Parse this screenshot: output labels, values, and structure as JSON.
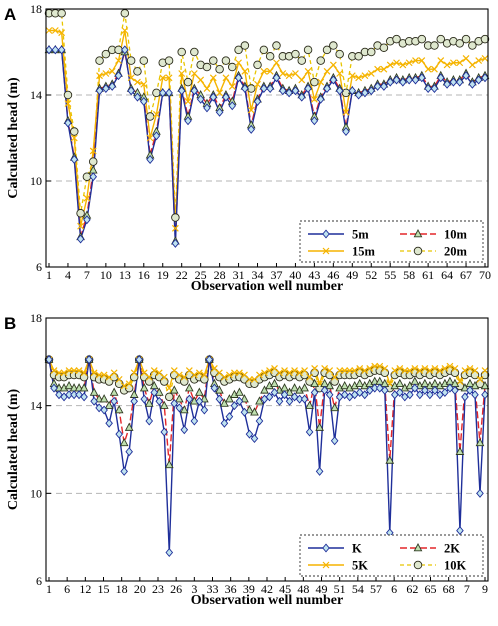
{
  "chart_data": [
    {
      "panel": "A",
      "type": "line",
      "xlabel": "Observation well number",
      "ylabel": "Calculated  head (m)",
      "xtick_labels": [
        "1",
        "4",
        "7",
        "10",
        "13",
        "16",
        "19",
        "22",
        "25",
        "28",
        "31",
        "34",
        "37",
        "40",
        "43",
        "46",
        "49",
        "52",
        "55",
        "58",
        "61",
        "64",
        "67",
        "70"
      ],
      "ylim": [
        6,
        18
      ],
      "yticks": [
        6,
        10,
        14,
        18
      ],
      "grid": "dashed gray horizontal at 10 and 14",
      "legend_placement": "bottom-right",
      "series": [
        {
          "name": "5m",
          "color": "#1f2f9a",
          "marker": "diamond",
          "values": [
            16.1,
            16.1,
            16.1,
            12.7,
            11,
            7.3,
            8.2,
            10.2,
            14.2,
            14.3,
            14.4,
            14.9,
            16.1,
            14.2,
            13.9,
            13.7,
            11,
            12.1,
            14.1,
            14.1,
            7.1,
            14.2,
            12.8,
            14.2,
            13.8,
            13.4,
            13.9,
            13.2,
            13.9,
            13.5,
            14.8,
            14.3,
            12.4,
            13.7,
            14.3,
            14.3,
            14.8,
            14.2,
            14.1,
            14.2,
            13.9,
            14.3,
            12.8,
            13.8,
            14.3,
            14.7,
            14.2,
            12.3,
            14.2,
            14,
            14.1,
            14.2,
            14.4,
            14.4,
            14.6,
            14.7,
            14.6,
            14.7,
            14.7,
            14.8,
            14.3,
            14.3,
            14.8,
            14.5,
            14.6,
            14.6,
            14.9,
            14.5,
            14.7,
            14.8
          ]
        },
        {
          "name": "10m",
          "color": "#e3262a",
          "marker": "triangle",
          "values": [
            16.1,
            16.1,
            16.1,
            12.8,
            11.1,
            7.4,
            8.4,
            10.5,
            14.3,
            14.4,
            14.5,
            15,
            16,
            14.3,
            14.1,
            13.9,
            11.2,
            12.3,
            14.1,
            14.1,
            7.2,
            14.3,
            13,
            14.3,
            14,
            13.6,
            14,
            13.4,
            14,
            13.7,
            14.9,
            14.4,
            12.6,
            13.8,
            14.4,
            14.4,
            14.9,
            14.3,
            14.2,
            14.3,
            14,
            14.4,
            13,
            13.9,
            14.4,
            14.8,
            14.3,
            12.5,
            14.2,
            14.1,
            14.2,
            14.3,
            14.5,
            14.5,
            14.7,
            14.8,
            14.7,
            14.8,
            14.8,
            14.9,
            14.4,
            14.4,
            14.9,
            14.6,
            14.7,
            14.7,
            15,
            14.6,
            14.8,
            14.9
          ]
        },
        {
          "name": "15m",
          "color": "#f5b400",
          "marker": "x",
          "values": [
            17,
            17,
            16.9,
            13.6,
            12,
            7.9,
            9.2,
            11.4,
            14.9,
            15,
            15.1,
            15.6,
            17,
            14.8,
            14.6,
            14.5,
            12,
            13.1,
            14.8,
            14.8,
            7.8,
            15,
            13.7,
            15,
            14.7,
            14.3,
            14.8,
            14.1,
            14.8,
            14.4,
            15.5,
            15.1,
            13.3,
            14.5,
            15.1,
            15.1,
            15.5,
            15,
            14.9,
            15,
            14.7,
            15.1,
            13.8,
            14.6,
            15.1,
            15.4,
            15,
            13.2,
            14.9,
            14.8,
            14.9,
            15,
            15.2,
            15.2,
            15.4,
            15.5,
            15.4,
            15.5,
            15.6,
            15.6,
            15.2,
            15.2,
            15.6,
            15.4,
            15.5,
            15.5,
            15.7,
            15.4,
            15.6,
            15.7
          ]
        },
        {
          "name": "20m",
          "color": "#e8c500",
          "marker": "circle",
          "values": [
            17.8,
            17.8,
            17.8,
            14,
            12.3,
            8.5,
            10.2,
            10.9,
            15.6,
            15.9,
            16.1,
            16.1,
            17.8,
            15.6,
            15.1,
            15.6,
            13,
            14.1,
            15.5,
            15.6,
            8.3,
            16,
            14.6,
            16,
            15.4,
            15.3,
            15.6,
            15.2,
            15.6,
            15.3,
            16.1,
            16.3,
            14.3,
            15.4,
            16.1,
            15.8,
            16.3,
            15.8,
            15.8,
            15.9,
            15.6,
            16.1,
            14.6,
            15.6,
            16.1,
            16.3,
            15.9,
            14.1,
            15.8,
            15.8,
            16,
            16,
            16.3,
            16.2,
            16.5,
            16.6,
            16.4,
            16.5,
            16.5,
            16.6,
            16.3,
            16.3,
            16.6,
            16.4,
            16.5,
            16.4,
            16.6,
            16.3,
            16.5,
            16.6
          ]
        }
      ]
    },
    {
      "panel": "B",
      "type": "line",
      "xlabel": "Observation well number",
      "ylabel": "Calculated  head (m)",
      "xtick_labels": [
        "1",
        "6",
        "12",
        "15",
        "18",
        "20",
        "23",
        "26",
        "3",
        "33",
        "36",
        "39",
        "42",
        "45",
        "48",
        "49",
        "51",
        "54",
        "57",
        "6",
        "62",
        "65",
        "68",
        "7",
        "9"
      ],
      "ylim": [
        6,
        18
      ],
      "yticks": [
        6,
        10,
        14,
        18
      ],
      "grid": "dashed gray horizontal at 10 and 14",
      "legend_placement": "bottom-right",
      "series": [
        {
          "name": "K",
          "color": "#1f2f9a",
          "marker": "diamond",
          "values": [
            16.1,
            14.8,
            14.5,
            14.4,
            14.5,
            14.5,
            14.5,
            14.4,
            16.1,
            14.2,
            13.9,
            13.8,
            13.2,
            14.2,
            12.7,
            11,
            11.9,
            14.2,
            16.1,
            14.3,
            13.3,
            14.6,
            14.2,
            12.8,
            7.3,
            14.1,
            13.9,
            12.9,
            14.3,
            13.3,
            14.2,
            13.8,
            16.1,
            14.8,
            14.3,
            13.2,
            13.5,
            14,
            14.2,
            13.7,
            12.7,
            12.5,
            13.3,
            14.3,
            14.4,
            14.6,
            14.2,
            14.5,
            14.2,
            14.4,
            14.3,
            14.3,
            12.8,
            14.6,
            11,
            14.7,
            14.5,
            12.4,
            14.4,
            14.5,
            14.4,
            14.5,
            14.6,
            14.5,
            14.7,
            14.8,
            14.8,
            14.7,
            8.2,
            14.5,
            14.6,
            14.4,
            14.5,
            14.8,
            14.5,
            14.7,
            14.5,
            14.7,
            14.5,
            14.6,
            14.8,
            14.7,
            8.3,
            14.4,
            14.7,
            14.5,
            10,
            14.5
          ]
        },
        {
          "name": "2K",
          "color": "#e3262a",
          "marker": "triangle",
          "values": [
            16.1,
            15,
            14.8,
            14.8,
            14.9,
            14.8,
            14.8,
            14.8,
            16.1,
            14.6,
            14.3,
            14.3,
            14,
            14.6,
            13.8,
            12.3,
            13,
            14.5,
            16.1,
            14.8,
            14.1,
            14.9,
            14.6,
            14,
            11.3,
            14.7,
            14.3,
            13.8,
            14.8,
            14.2,
            14.6,
            14.3,
            16.1,
            15,
            14.7,
            14.1,
            14.3,
            14.5,
            14.6,
            14.3,
            13.8,
            13.7,
            14.2,
            14.7,
            14.9,
            15,
            14.7,
            14.8,
            14.6,
            14.8,
            14.7,
            14.8,
            14,
            15,
            13,
            15,
            14.9,
            13.9,
            14.8,
            14.9,
            14.8,
            14.9,
            15,
            14.9,
            15,
            15.1,
            15.1,
            15,
            11.5,
            14.9,
            15,
            14.8,
            14.9,
            15.1,
            14.9,
            15,
            14.9,
            15,
            14.9,
            15,
            15.1,
            15,
            11.9,
            14.8,
            15,
            14.9,
            12.3,
            14.9
          ]
        },
        {
          "name": "5K",
          "color": "#f5b400",
          "marker": "x",
          "values": [
            16.1,
            15.6,
            15.5,
            15.5,
            15.6,
            15.6,
            15.6,
            15.5,
            16.1,
            15.5,
            15.4,
            15.4,
            15.3,
            15.5,
            15.2,
            14.9,
            15,
            15.5,
            16.1,
            15.5,
            15.3,
            15.6,
            15.5,
            15.3,
            14.8,
            15.6,
            15.4,
            15.3,
            15.6,
            15.4,
            15.5,
            15.4,
            16.1,
            15.7,
            15.5,
            15.3,
            15.4,
            15.5,
            15.5,
            15.4,
            15.2,
            15.2,
            15.4,
            15.5,
            15.6,
            15.7,
            15.5,
            15.6,
            15.5,
            15.6,
            15.5,
            15.6,
            15.3,
            15.7,
            15,
            15.7,
            15.6,
            15.3,
            15.6,
            15.6,
            15.6,
            15.6,
            15.7,
            15.6,
            15.7,
            15.8,
            15.8,
            15.7,
            15,
            15.6,
            15.7,
            15.6,
            15.6,
            15.7,
            15.6,
            15.7,
            15.6,
            15.7,
            15.6,
            15.7,
            15.8,
            15.7,
            15.1,
            15.6,
            15.7,
            15.6,
            15.2,
            15.6
          ]
        },
        {
          "name": "10K",
          "color": "#e8c500",
          "marker": "circle",
          "values": [
            16.1,
            15.4,
            15.3,
            15.3,
            15.4,
            15.4,
            15.4,
            15.3,
            16.1,
            15.3,
            15.2,
            15.2,
            15.1,
            15.3,
            15,
            14.7,
            14.8,
            15.3,
            16.1,
            15.3,
            15.1,
            15.4,
            15.3,
            15.1,
            14.4,
            15.4,
            15.2,
            15.1,
            15.4,
            15.2,
            15.3,
            15.2,
            16.1,
            15.5,
            15.3,
            15.1,
            15.2,
            15.3,
            15.3,
            15.2,
            15,
            15,
            15.2,
            15.3,
            15.4,
            15.5,
            15.3,
            15.4,
            15.3,
            15.4,
            15.3,
            15.4,
            15.1,
            15.5,
            14.8,
            15.5,
            15.4,
            15.1,
            15.4,
            15.4,
            15.4,
            15.4,
            15.5,
            15.4,
            15.5,
            15.6,
            15.6,
            15.5,
            14.8,
            15.4,
            15.5,
            15.4,
            15.4,
            15.5,
            15.4,
            15.5,
            15.4,
            15.5,
            15.4,
            15.5,
            15.6,
            15.5,
            14.9,
            15.4,
            15.5,
            15.4,
            15,
            15.4
          ]
        }
      ]
    }
  ]
}
